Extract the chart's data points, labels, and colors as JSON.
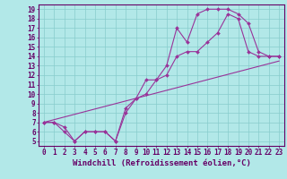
{
  "title": "",
  "xlabel": "Windchill (Refroidissement éolien,°C)",
  "bg_color": "#b2e8e8",
  "grid_color": "#aadddd",
  "line_color": "#993399",
  "xlim": [
    -0.5,
    23.5
  ],
  "ylim": [
    4.5,
    19.5
  ],
  "xticks": [
    0,
    1,
    2,
    3,
    4,
    5,
    6,
    7,
    8,
    9,
    10,
    11,
    12,
    13,
    14,
    15,
    16,
    17,
    18,
    19,
    20,
    21,
    22,
    23
  ],
  "yticks": [
    5,
    6,
    7,
    8,
    9,
    10,
    11,
    12,
    13,
    14,
    15,
    16,
    17,
    18,
    19
  ],
  "curve1_x": [
    0,
    1,
    2,
    3,
    4,
    5,
    6,
    7,
    8,
    9,
    10,
    11,
    12,
    13,
    14,
    15,
    16,
    17,
    18,
    19,
    20,
    21,
    22,
    23
  ],
  "curve1_y": [
    7.0,
    7.0,
    6.5,
    5.0,
    6.0,
    6.0,
    6.0,
    5.0,
    8.5,
    9.5,
    11.5,
    11.5,
    13.0,
    17.0,
    15.5,
    18.5,
    19.0,
    19.0,
    19.0,
    18.5,
    17.5,
    14.5,
    14.0,
    14.0
  ],
  "curve2_x": [
    0,
    1,
    2,
    3,
    4,
    5,
    6,
    7,
    8,
    9,
    10,
    11,
    12,
    13,
    14,
    15,
    16,
    17,
    18,
    19,
    20,
    21,
    22,
    23
  ],
  "curve2_y": [
    7.0,
    7.0,
    6.0,
    5.0,
    6.0,
    6.0,
    6.0,
    5.0,
    8.0,
    9.5,
    10.0,
    11.5,
    12.0,
    14.0,
    14.5,
    14.5,
    15.5,
    16.5,
    18.5,
    18.0,
    14.5,
    14.0,
    14.0,
    14.0
  ],
  "curve3_x": [
    0,
    23
  ],
  "curve3_y": [
    7.0,
    13.5
  ],
  "font_color": "#660066",
  "tick_fontsize": 5.5,
  "label_fontsize": 6.5
}
